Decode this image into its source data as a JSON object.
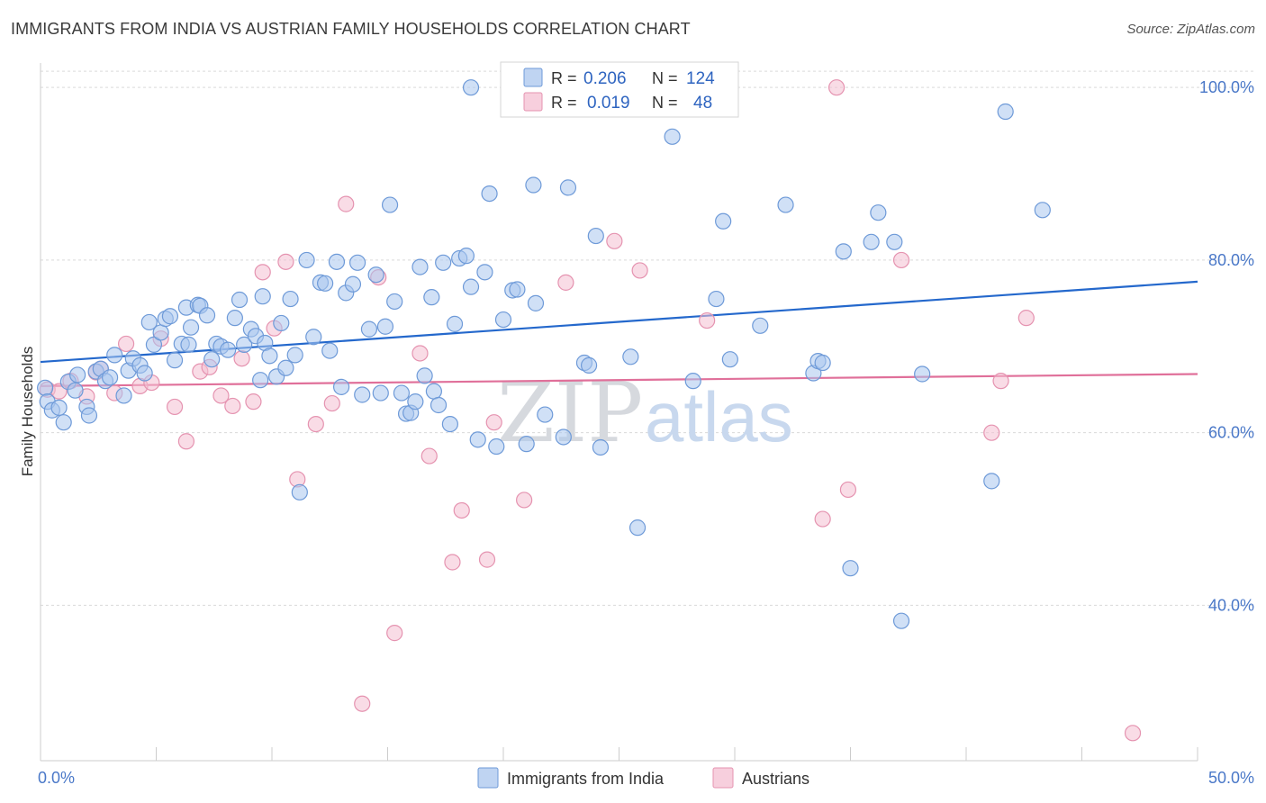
{
  "header": {
    "title": "IMMIGRANTS FROM INDIA VS AUSTRIAN FAMILY HOUSEHOLDS CORRELATION CHART",
    "source": "Source: ZipAtlas.com"
  },
  "watermark": {
    "zip": "ZIP",
    "atlas": "atlas"
  },
  "colors": {
    "blue_fill": "#a9c6ee",
    "blue_stroke": "#6e9ad8",
    "blue_line": "#2468cc",
    "pink_fill": "#f4bfd1",
    "pink_stroke": "#e593b0",
    "pink_line": "#e0709a",
    "tick_text": "#4a78c8",
    "grid": "#d9d9d9"
  },
  "legend": {
    "rows": [
      {
        "r_label": "R =",
        "r_value": "0.206",
        "n_label": "N =",
        "n_value": "124"
      },
      {
        "r_label": "R =",
        "r_value": "0.019",
        "n_label": "N =",
        "n_value": "48"
      }
    ]
  },
  "chart_data": {
    "type": "scatter",
    "title": "IMMIGRANTS FROM INDIA VS AUSTRIAN FAMILY HOUSEHOLDS CORRELATION CHART",
    "xlabel": "",
    "ylabel": "Family Households",
    "xlim": [
      0,
      50
    ],
    "ylim": [
      22,
      102
    ],
    "x_tick_labels": [
      "0.0%",
      "50.0%"
    ],
    "y_ticks": [
      40,
      60,
      80,
      100
    ],
    "y_tick_labels": [
      "40.0%",
      "60.0%",
      "80.0%",
      "100.0%"
    ],
    "grid": true,
    "legend_position": "top-center",
    "series": [
      {
        "name": "Immigrants from India",
        "r": 0.206,
        "n": 124,
        "trend": {
          "x": [
            0,
            50
          ],
          "y": [
            68.2,
            77.5
          ]
        },
        "points": [
          [
            0.2,
            65.2
          ],
          [
            0.3,
            63.6
          ],
          [
            0.5,
            62.6
          ],
          [
            0.8,
            62.9
          ],
          [
            1.0,
            61.2
          ],
          [
            1.2,
            65.9
          ],
          [
            1.5,
            64.9
          ],
          [
            1.6,
            66.7
          ],
          [
            2.0,
            63.0
          ],
          [
            2.1,
            62.0
          ],
          [
            2.4,
            67.1
          ],
          [
            2.6,
            67.4
          ],
          [
            2.8,
            66.0
          ],
          [
            3.0,
            66.4
          ],
          [
            3.2,
            69.0
          ],
          [
            3.6,
            64.3
          ],
          [
            3.8,
            67.2
          ],
          [
            4.0,
            68.6
          ],
          [
            4.3,
            67.8
          ],
          [
            4.5,
            66.9
          ],
          [
            4.7,
            72.8
          ],
          [
            4.9,
            70.2
          ],
          [
            5.2,
            71.6
          ],
          [
            5.4,
            73.2
          ],
          [
            5.6,
            73.5
          ],
          [
            5.8,
            68.4
          ],
          [
            6.1,
            70.3
          ],
          [
            6.3,
            74.5
          ],
          [
            6.4,
            70.2
          ],
          [
            6.5,
            72.2
          ],
          [
            6.8,
            74.8
          ],
          [
            6.9,
            74.7
          ],
          [
            7.2,
            73.6
          ],
          [
            7.4,
            68.5
          ],
          [
            7.6,
            70.3
          ],
          [
            7.8,
            70.0
          ],
          [
            8.1,
            69.6
          ],
          [
            8.4,
            73.3
          ],
          [
            8.6,
            75.4
          ],
          [
            8.8,
            70.2
          ],
          [
            9.1,
            72.0
          ],
          [
            9.3,
            71.2
          ],
          [
            9.5,
            66.1
          ],
          [
            9.6,
            75.8
          ],
          [
            9.7,
            70.4
          ],
          [
            9.9,
            68.9
          ],
          [
            10.2,
            66.5
          ],
          [
            10.4,
            72.7
          ],
          [
            10.6,
            67.5
          ],
          [
            10.8,
            75.5
          ],
          [
            11.0,
            69.0
          ],
          [
            11.2,
            53.1
          ],
          [
            11.5,
            80.0
          ],
          [
            11.8,
            71.1
          ],
          [
            12.1,
            77.4
          ],
          [
            12.3,
            77.3
          ],
          [
            12.5,
            69.5
          ],
          [
            12.8,
            79.8
          ],
          [
            13.0,
            65.3
          ],
          [
            13.2,
            76.2
          ],
          [
            13.5,
            77.2
          ],
          [
            13.7,
            79.7
          ],
          [
            13.9,
            64.4
          ],
          [
            14.2,
            72.0
          ],
          [
            14.5,
            78.3
          ],
          [
            14.7,
            64.6
          ],
          [
            14.9,
            72.3
          ],
          [
            15.1,
            86.4
          ],
          [
            15.3,
            75.2
          ],
          [
            15.6,
            64.6
          ],
          [
            15.8,
            62.2
          ],
          [
            16.0,
            62.3
          ],
          [
            16.2,
            63.6
          ],
          [
            16.4,
            79.2
          ],
          [
            16.6,
            66.6
          ],
          [
            16.9,
            75.7
          ],
          [
            17.0,
            64.8
          ],
          [
            17.2,
            63.2
          ],
          [
            17.4,
            79.7
          ],
          [
            17.7,
            61.0
          ],
          [
            17.9,
            72.6
          ],
          [
            18.1,
            80.2
          ],
          [
            18.4,
            80.5
          ],
          [
            18.6,
            76.9
          ],
          [
            18.9,
            59.2
          ],
          [
            19.2,
            78.6
          ],
          [
            19.4,
            87.7
          ],
          [
            19.7,
            58.4
          ],
          [
            20.0,
            73.1
          ],
          [
            20.4,
            76.5
          ],
          [
            20.6,
            76.6
          ],
          [
            21.0,
            58.7
          ],
          [
            21.3,
            88.7
          ],
          [
            21.4,
            75.0
          ],
          [
            21.8,
            62.1
          ],
          [
            22.6,
            59.5
          ],
          [
            22.8,
            88.4
          ],
          [
            23.5,
            68.1
          ],
          [
            23.7,
            67.8
          ],
          [
            24.0,
            82.8
          ],
          [
            24.2,
            58.3
          ],
          [
            25.5,
            68.8
          ],
          [
            25.8,
            49.0
          ],
          [
            27.3,
            94.3
          ],
          [
            28.2,
            66.0
          ],
          [
            29.2,
            75.5
          ],
          [
            29.5,
            84.5
          ],
          [
            29.8,
            68.5
          ],
          [
            31.1,
            72.4
          ],
          [
            32.2,
            86.4
          ],
          [
            33.4,
            66.9
          ],
          [
            33.6,
            68.3
          ],
          [
            33.8,
            68.1
          ],
          [
            34.7,
            81.0
          ],
          [
            35.0,
            44.3
          ],
          [
            35.9,
            82.1
          ],
          [
            36.2,
            85.5
          ],
          [
            36.9,
            82.1
          ],
          [
            37.2,
            38.2
          ],
          [
            38.1,
            66.8
          ],
          [
            41.1,
            54.4
          ],
          [
            41.7,
            97.2
          ],
          [
            43.3,
            85.8
          ],
          [
            18.6,
            100.0
          ]
        ]
      },
      {
        "name": "Austrians",
        "r": 0.019,
        "n": 48,
        "trend": {
          "x": [
            0,
            50
          ],
          "y": [
            65.4,
            66.8
          ]
        },
        "points": [
          [
            0.3,
            65.0
          ],
          [
            0.8,
            64.8
          ],
          [
            1.3,
            66.0
          ],
          [
            2.0,
            64.2
          ],
          [
            2.4,
            67.0
          ],
          [
            2.6,
            67.4
          ],
          [
            3.2,
            64.6
          ],
          [
            3.7,
            70.3
          ],
          [
            4.3,
            65.4
          ],
          [
            4.8,
            65.8
          ],
          [
            5.2,
            70.9
          ],
          [
            5.8,
            63.0
          ],
          [
            6.3,
            59.0
          ],
          [
            6.9,
            67.1
          ],
          [
            7.3,
            67.6
          ],
          [
            7.8,
            64.3
          ],
          [
            8.3,
            63.1
          ],
          [
            8.7,
            68.6
          ],
          [
            9.2,
            63.6
          ],
          [
            9.6,
            78.6
          ],
          [
            10.1,
            72.1
          ],
          [
            10.6,
            79.8
          ],
          [
            11.1,
            54.6
          ],
          [
            11.9,
            61.0
          ],
          [
            12.6,
            63.4
          ],
          [
            13.2,
            86.5
          ],
          [
            13.9,
            28.6
          ],
          [
            14.6,
            78.0
          ],
          [
            15.3,
            36.8
          ],
          [
            16.4,
            69.2
          ],
          [
            16.8,
            57.3
          ],
          [
            17.8,
            45.0
          ],
          [
            18.2,
            51.0
          ],
          [
            19.3,
            45.3
          ],
          [
            19.6,
            61.2
          ],
          [
            20.9,
            52.2
          ],
          [
            22.7,
            77.4
          ],
          [
            24.8,
            82.2
          ],
          [
            25.9,
            78.8
          ],
          [
            28.8,
            73.0
          ],
          [
            33.8,
            50.0
          ],
          [
            34.4,
            100.0
          ],
          [
            34.9,
            53.4
          ],
          [
            37.2,
            80.0
          ],
          [
            41.1,
            60.0
          ],
          [
            41.5,
            66.0
          ],
          [
            42.6,
            73.3
          ],
          [
            47.2,
            25.2
          ]
        ]
      }
    ]
  }
}
